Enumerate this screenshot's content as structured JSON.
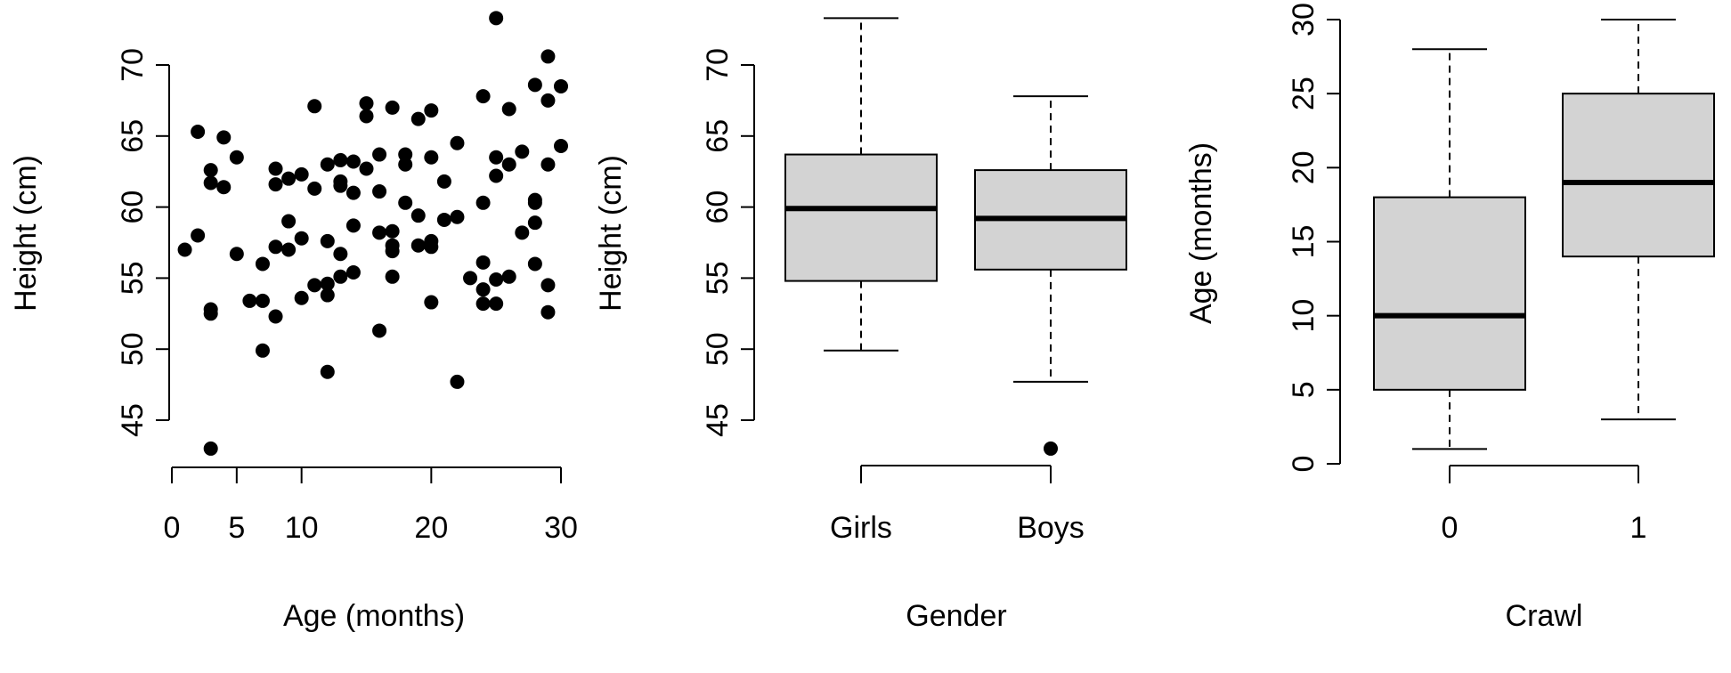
{
  "chart_data": [
    {
      "type": "scatter",
      "xlabel": "Age (months)",
      "ylabel": "Height (cm)",
      "xticks": [
        0,
        5,
        10,
        20,
        30
      ],
      "yticks": [
        45,
        50,
        55,
        60,
        65,
        70
      ],
      "xlim": [
        0,
        30
      ],
      "ylim": [
        42.5,
        73.5
      ],
      "grid": false,
      "points": [
        {
          "x": 1,
          "y": 57
        },
        {
          "x": 2,
          "y": 58
        },
        {
          "x": 2,
          "y": 65.3
        },
        {
          "x": 3,
          "y": 62.6
        },
        {
          "x": 3,
          "y": 61.7
        },
        {
          "x": 3,
          "y": 52.8
        },
        {
          "x": 3,
          "y": 52.5
        },
        {
          "x": 3,
          "y": 43
        },
        {
          "x": 4,
          "y": 64.9
        },
        {
          "x": 4,
          "y": 61.4
        },
        {
          "x": 5,
          "y": 63.5
        },
        {
          "x": 5,
          "y": 56.7
        },
        {
          "x": 6,
          "y": 53.4
        },
        {
          "x": 7,
          "y": 53.4
        },
        {
          "x": 7,
          "y": 56
        },
        {
          "x": 7,
          "y": 49.9
        },
        {
          "x": 8,
          "y": 62.7
        },
        {
          "x": 8,
          "y": 61.6
        },
        {
          "x": 8,
          "y": 57.2
        },
        {
          "x": 8,
          "y": 52.3
        },
        {
          "x": 9,
          "y": 62
        },
        {
          "x": 9,
          "y": 59
        },
        {
          "x": 9,
          "y": 57
        },
        {
          "x": 10,
          "y": 62.3
        },
        {
          "x": 10,
          "y": 57.8
        },
        {
          "x": 10,
          "y": 53.6
        },
        {
          "x": 11,
          "y": 67.1
        },
        {
          "x": 11,
          "y": 61.3
        },
        {
          "x": 11,
          "y": 54.5
        },
        {
          "x": 12,
          "y": 63
        },
        {
          "x": 12,
          "y": 57.6
        },
        {
          "x": 12,
          "y": 54.6
        },
        {
          "x": 12,
          "y": 53.8
        },
        {
          "x": 12,
          "y": 48.4
        },
        {
          "x": 13,
          "y": 63.3
        },
        {
          "x": 13,
          "y": 61.8
        },
        {
          "x": 13,
          "y": 61.5
        },
        {
          "x": 13,
          "y": 56.7
        },
        {
          "x": 13,
          "y": 55.1
        },
        {
          "x": 14,
          "y": 63.2
        },
        {
          "x": 14,
          "y": 61
        },
        {
          "x": 14,
          "y": 58.7
        },
        {
          "x": 14,
          "y": 55.4
        },
        {
          "x": 15,
          "y": 67.3
        },
        {
          "x": 15,
          "y": 66.4
        },
        {
          "x": 15,
          "y": 62.7
        },
        {
          "x": 16,
          "y": 63.7
        },
        {
          "x": 16,
          "y": 61.1
        },
        {
          "x": 16,
          "y": 58.2
        },
        {
          "x": 16,
          "y": 51.3
        },
        {
          "x": 17,
          "y": 67
        },
        {
          "x": 17,
          "y": 58.3
        },
        {
          "x": 17,
          "y": 57.3
        },
        {
          "x": 17,
          "y": 56.9
        },
        {
          "x": 17,
          "y": 55.1
        },
        {
          "x": 18,
          "y": 63.7
        },
        {
          "x": 18,
          "y": 63
        },
        {
          "x": 18,
          "y": 60.3
        },
        {
          "x": 19,
          "y": 66.2
        },
        {
          "x": 19,
          "y": 59.4
        },
        {
          "x": 19,
          "y": 57.3
        },
        {
          "x": 20,
          "y": 66.8
        },
        {
          "x": 20,
          "y": 63.5
        },
        {
          "x": 20,
          "y": 57.6
        },
        {
          "x": 20,
          "y": 57.2
        },
        {
          "x": 20,
          "y": 53.3
        },
        {
          "x": 21,
          "y": 61.8
        },
        {
          "x": 21,
          "y": 59.1
        },
        {
          "x": 22,
          "y": 64.5
        },
        {
          "x": 22,
          "y": 59.3
        },
        {
          "x": 22,
          "y": 47.7
        },
        {
          "x": 23,
          "y": 55
        },
        {
          "x": 24,
          "y": 67.8
        },
        {
          "x": 24,
          "y": 60.3
        },
        {
          "x": 24,
          "y": 56.1
        },
        {
          "x": 24,
          "y": 54.2
        },
        {
          "x": 24,
          "y": 53.2
        },
        {
          "x": 25,
          "y": 73.3
        },
        {
          "x": 25,
          "y": 63.5
        },
        {
          "x": 25,
          "y": 62.2
        },
        {
          "x": 25,
          "y": 54.9
        },
        {
          "x": 25,
          "y": 53.2
        },
        {
          "x": 26,
          "y": 66.9
        },
        {
          "x": 26,
          "y": 63
        },
        {
          "x": 26,
          "y": 55.1
        },
        {
          "x": 27,
          "y": 63.9
        },
        {
          "x": 27,
          "y": 58.2
        },
        {
          "x": 28,
          "y": 68.6
        },
        {
          "x": 28,
          "y": 60.5
        },
        {
          "x": 28,
          "y": 60.3
        },
        {
          "x": 28,
          "y": 58.9
        },
        {
          "x": 28,
          "y": 56
        },
        {
          "x": 29,
          "y": 70.6
        },
        {
          "x": 29,
          "y": 67.5
        },
        {
          "x": 29,
          "y": 63
        },
        {
          "x": 29,
          "y": 54.5
        },
        {
          "x": 29,
          "y": 52.6
        },
        {
          "x": 30,
          "y": 68.5
        },
        {
          "x": 30,
          "y": 64.3
        }
      ]
    },
    {
      "type": "box",
      "xlabel": "Gender",
      "ylabel": "Height (cm)",
      "categories": [
        "Girls",
        "Boys"
      ],
      "yticks": [
        45,
        50,
        55,
        60,
        65,
        70
      ],
      "ylim": [
        42.5,
        73.5
      ],
      "grid": false,
      "boxes": [
        {
          "category": "Girls",
          "whisker_low": 49.9,
          "q1": 54.8,
          "median": 59.9,
          "q3": 63.7,
          "whisker_high": 73.3,
          "outliers": []
        },
        {
          "category": "Boys",
          "whisker_low": 47.7,
          "q1": 55.6,
          "median": 59.2,
          "q3": 62.6,
          "whisker_high": 67.8,
          "outliers": [
            43
          ]
        }
      ]
    },
    {
      "type": "box",
      "xlabel": "Crawl",
      "ylabel": "Age (months)",
      "categories": [
        "0",
        "1"
      ],
      "yticks": [
        0,
        5,
        10,
        15,
        20,
        25,
        30
      ],
      "ylim": [
        0,
        30
      ],
      "grid": false,
      "boxes": [
        {
          "category": "0",
          "whisker_low": 1,
          "q1": 5,
          "median": 10,
          "q3": 18,
          "whisker_high": 28,
          "outliers": []
        },
        {
          "category": "1",
          "whisker_low": 3,
          "q1": 14,
          "median": 19,
          "q3": 25,
          "whisker_high": 30,
          "outliers": []
        }
      ]
    }
  ]
}
